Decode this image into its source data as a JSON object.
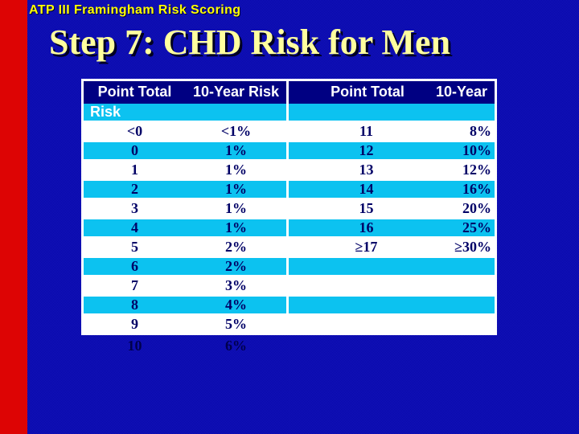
{
  "slide": {
    "eyebrow": "ATP III Framingham Risk Scoring",
    "title": "Step 7: CHD Risk for Men"
  },
  "table": {
    "header": {
      "col1": "Point Total",
      "col2": "10-Year Risk",
      "col3": "Point Total",
      "col4": "10-Year",
      "wrapped_word": "Risk"
    },
    "rows": [
      [
        "<0",
        "<1%",
        "11",
        "8%"
      ],
      [
        "0",
        "1%",
        "12",
        "10%"
      ],
      [
        "1",
        "1%",
        "13",
        "12%"
      ],
      [
        "2",
        "1%",
        "14",
        "16%"
      ],
      [
        "3",
        "1%",
        "15",
        "20%"
      ],
      [
        "4",
        "1%",
        "16",
        "25%"
      ],
      [
        "5",
        "2%",
        "≥17",
        "≥30%"
      ],
      [
        "6",
        "2%",
        "",
        ""
      ],
      [
        "7",
        "3%",
        "",
        ""
      ],
      [
        "8",
        "4%",
        "",
        ""
      ],
      [
        "9",
        "5%",
        "",
        ""
      ]
    ],
    "overflow_row": [
      "10",
      "6%"
    ]
  },
  "colors": {
    "background_blue": "#0d0db1",
    "accent_red": "#dd0404",
    "header_navy": "#000082",
    "band_cyan": "#0cc2f0",
    "body_text_navy": "#000066",
    "header_text": "#ffffff",
    "title_yellow": "#ffff9e",
    "eyebrow_yellow": "#ffff00",
    "grid_white": "#ffffff"
  }
}
